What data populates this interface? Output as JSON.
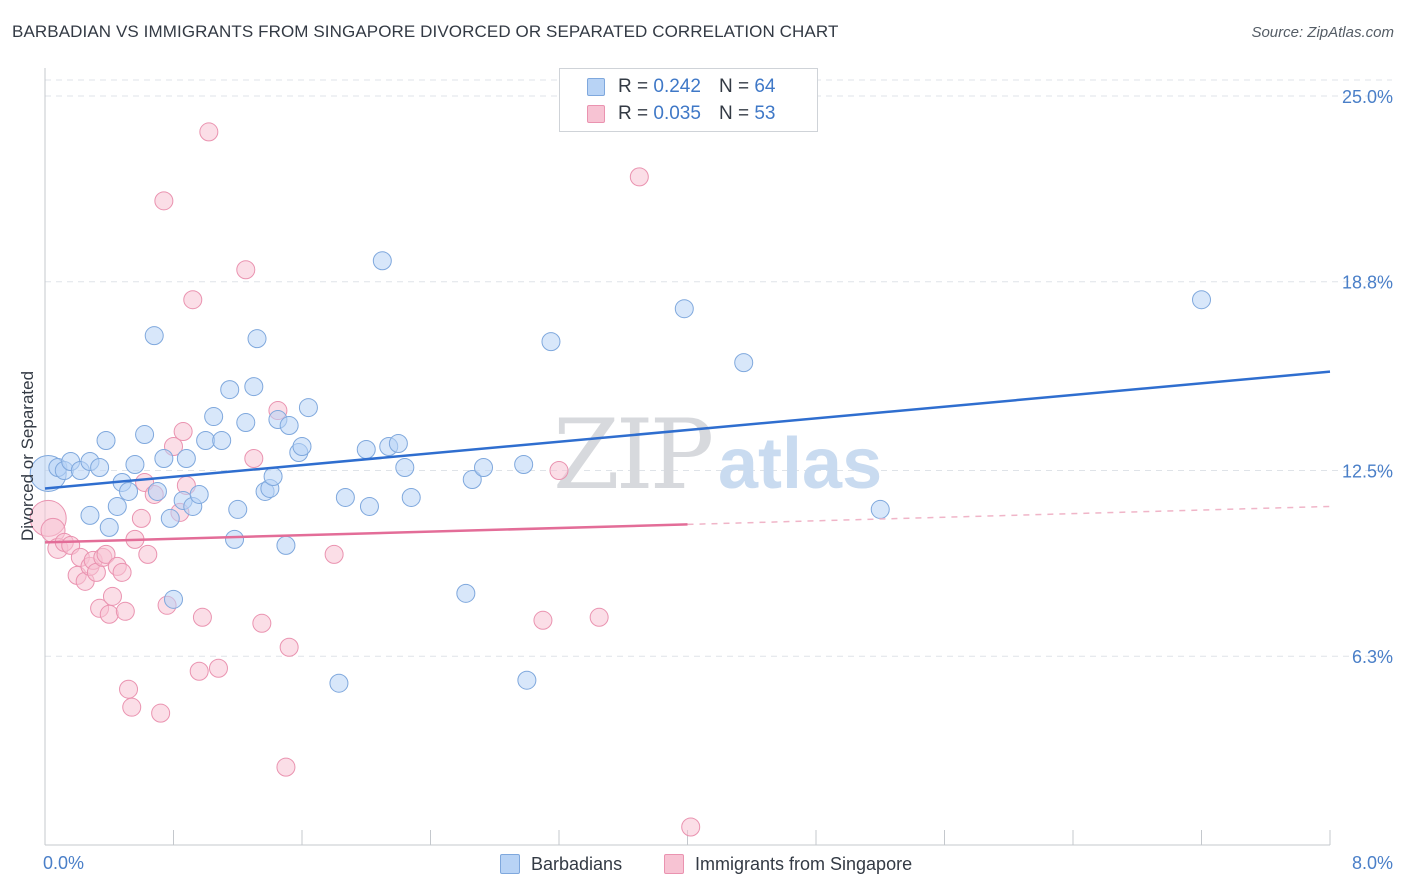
{
  "header": {
    "title": "BARBADIAN VS IMMIGRANTS FROM SINGAPORE DIVORCED OR SEPARATED CORRELATION CHART",
    "source": "Source: ZipAtlas.com"
  },
  "watermark": {
    "zip": "ZIP",
    "atlas": "atlas"
  },
  "colors": {
    "blue_fill": "#b8d3f5",
    "blue_stroke": "#7fa8dd",
    "blue_line": "#2f6ecf",
    "pink_fill": "#f7c3d3",
    "pink_stroke": "#ea93b0",
    "pink_line": "#e36d98",
    "grid": "#dfe3e8",
    "tick_text": "#4a7fc8"
  },
  "legend": {
    "rows": [
      {
        "r_label": "R =",
        "r_value": "0.242",
        "n_label": "N =",
        "n_value": "64"
      },
      {
        "r_label": "R =",
        "r_value": "0.035",
        "n_label": "N =",
        "n_value": "53"
      }
    ]
  },
  "bottom_legend": {
    "series1": "Barbadians",
    "series2": "Immigrants from Singapore"
  },
  "chart_data": {
    "type": "scatter",
    "title": "BARBADIAN VS IMMIGRANTS FROM SINGAPORE DIVORCED OR SEPARATED CORRELATION CHART",
    "xlabel": "",
    "ylabel": "Divorced or Separated",
    "xlim": [
      0,
      8
    ],
    "ylim": [
      0,
      25.8
    ],
    "x_tick_labels": [
      "0.0%",
      "8.0%"
    ],
    "y_ticks": [
      6.3,
      12.5,
      18.8,
      25.0
    ],
    "y_tick_labels": [
      "6.3%",
      "12.5%",
      "18.8%",
      "25.0%"
    ],
    "grid": true,
    "series": [
      {
        "name": "Barbadians",
        "color": "blue",
        "r": 0.242,
        "n": 64,
        "trend": {
          "x": [
            0,
            8
          ],
          "y": [
            11.9,
            15.8
          ]
        },
        "points": [
          [
            0.02,
            12.4,
            18
          ],
          [
            0.08,
            12.6,
            9
          ],
          [
            0.12,
            12.5,
            9
          ],
          [
            0.16,
            12.8,
            9
          ],
          [
            0.22,
            12.5,
            9
          ],
          [
            0.28,
            12.8,
            9
          ],
          [
            0.34,
            12.6,
            9
          ],
          [
            0.28,
            11.0,
            9
          ],
          [
            0.38,
            13.5,
            9
          ],
          [
            0.4,
            10.6,
            9
          ],
          [
            0.45,
            11.3,
            9
          ],
          [
            0.48,
            12.1,
            9
          ],
          [
            0.52,
            11.8,
            9
          ],
          [
            0.56,
            12.7,
            9
          ],
          [
            0.62,
            13.7,
            9
          ],
          [
            0.68,
            17.0,
            9
          ],
          [
            0.7,
            11.8,
            9
          ],
          [
            0.74,
            12.9,
            9
          ],
          [
            0.78,
            10.9,
            9
          ],
          [
            0.8,
            8.2,
            9
          ],
          [
            0.86,
            11.5,
            9
          ],
          [
            0.88,
            12.9,
            9
          ],
          [
            0.92,
            11.3,
            9
          ],
          [
            0.96,
            11.7,
            9
          ],
          [
            1.0,
            13.5,
            9
          ],
          [
            1.05,
            14.3,
            9
          ],
          [
            1.1,
            13.5,
            9
          ],
          [
            1.15,
            15.2,
            9
          ],
          [
            1.18,
            10.2,
            9
          ],
          [
            1.2,
            11.2,
            9
          ],
          [
            1.25,
            14.1,
            9
          ],
          [
            1.3,
            15.3,
            9
          ],
          [
            1.32,
            16.9,
            9
          ],
          [
            1.37,
            11.8,
            9
          ],
          [
            1.4,
            11.9,
            9
          ],
          [
            1.42,
            12.3,
            9
          ],
          [
            1.45,
            14.2,
            9
          ],
          [
            1.5,
            10.0,
            9
          ],
          [
            1.52,
            14.0,
            9
          ],
          [
            1.58,
            13.1,
            9
          ],
          [
            1.6,
            13.3,
            9
          ],
          [
            1.64,
            14.6,
            9
          ],
          [
            1.83,
            5.4,
            9
          ],
          [
            1.87,
            11.6,
            9
          ],
          [
            2.0,
            13.2,
            9
          ],
          [
            2.02,
            11.3,
            9
          ],
          [
            2.1,
            19.5,
            9
          ],
          [
            2.14,
            13.3,
            9
          ],
          [
            2.2,
            13.4,
            9
          ],
          [
            2.24,
            12.6,
            9
          ],
          [
            2.28,
            11.6,
            9
          ],
          [
            2.62,
            8.4,
            9
          ],
          [
            2.66,
            12.2,
            9
          ],
          [
            2.73,
            12.6,
            9
          ],
          [
            2.98,
            12.7,
            9
          ],
          [
            3.0,
            5.5,
            9
          ],
          [
            3.15,
            16.8,
            9
          ],
          [
            3.98,
            17.9,
            9
          ],
          [
            4.35,
            16.1,
            9
          ],
          [
            5.2,
            11.2,
            9
          ],
          [
            7.2,
            18.2,
            9
          ]
        ]
      },
      {
        "name": "Immigrants from Singapore",
        "color": "pink",
        "r": 0.035,
        "n": 53,
        "trend": {
          "x": [
            0,
            4.0
          ],
          "y": [
            10.1,
            10.7
          ]
        },
        "trend_dashed": {
          "x": [
            4.0,
            8.0
          ],
          "y": [
            10.7,
            11.3
          ]
        },
        "points": [
          [
            0.02,
            10.9,
            18
          ],
          [
            0.05,
            10.5,
            12
          ],
          [
            0.08,
            9.9,
            10
          ],
          [
            0.12,
            10.1,
            9
          ],
          [
            0.16,
            10.0,
            9
          ],
          [
            0.2,
            9.0,
            9
          ],
          [
            0.22,
            9.6,
            9
          ],
          [
            0.25,
            8.8,
            9
          ],
          [
            0.28,
            9.3,
            9
          ],
          [
            0.3,
            9.5,
            9
          ],
          [
            0.32,
            9.1,
            9
          ],
          [
            0.34,
            7.9,
            9
          ],
          [
            0.36,
            9.6,
            9
          ],
          [
            0.38,
            9.7,
            9
          ],
          [
            0.4,
            7.7,
            9
          ],
          [
            0.42,
            8.3,
            9
          ],
          [
            0.45,
            9.3,
            9
          ],
          [
            0.48,
            9.1,
            9
          ],
          [
            0.5,
            7.8,
            9
          ],
          [
            0.52,
            5.2,
            9
          ],
          [
            0.54,
            4.6,
            9
          ],
          [
            0.56,
            10.2,
            9
          ],
          [
            0.6,
            10.9,
            9
          ],
          [
            0.62,
            12.1,
            9
          ],
          [
            0.64,
            9.7,
            9
          ],
          [
            0.68,
            11.7,
            9
          ],
          [
            0.72,
            4.4,
            9
          ],
          [
            0.74,
            21.5,
            9
          ],
          [
            0.76,
            8.0,
            9
          ],
          [
            0.8,
            13.3,
            9
          ],
          [
            0.84,
            11.1,
            9
          ],
          [
            0.86,
            13.8,
            9
          ],
          [
            0.88,
            12.0,
            9
          ],
          [
            0.92,
            18.2,
            9
          ],
          [
            0.96,
            5.8,
            9
          ],
          [
            0.98,
            7.6,
            9
          ],
          [
            1.02,
            23.8,
            9
          ],
          [
            1.08,
            5.9,
            9
          ],
          [
            1.25,
            19.2,
            9
          ],
          [
            1.3,
            12.9,
            9
          ],
          [
            1.35,
            7.4,
            9
          ],
          [
            1.45,
            14.5,
            9
          ],
          [
            1.5,
            2.6,
            9
          ],
          [
            1.52,
            6.6,
            9
          ],
          [
            1.8,
            9.7,
            9
          ],
          [
            3.1,
            7.5,
            9
          ],
          [
            3.2,
            12.5,
            9
          ],
          [
            3.45,
            7.6,
            9
          ],
          [
            3.7,
            22.3,
            9
          ],
          [
            4.02,
            0.6,
            9
          ]
        ]
      }
    ]
  }
}
